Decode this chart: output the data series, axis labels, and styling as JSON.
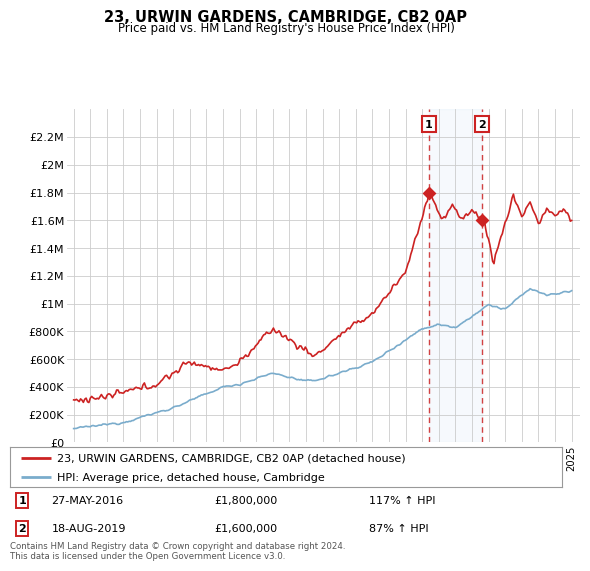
{
  "title": "23, URWIN GARDENS, CAMBRIDGE, CB2 0AP",
  "subtitle": "Price paid vs. HM Land Registry's House Price Index (HPI)",
  "legend_line1": "23, URWIN GARDENS, CAMBRIDGE, CB2 0AP (detached house)",
  "legend_line2": "HPI: Average price, detached house, Cambridge",
  "footer": "Contains HM Land Registry data © Crown copyright and database right 2024.\nThis data is licensed under the Open Government Licence v3.0.",
  "annotation1_label": "1",
  "annotation1_date": "27-MAY-2016",
  "annotation1_price": "£1,800,000",
  "annotation1_hpi": "117% ↑ HPI",
  "annotation2_label": "2",
  "annotation2_date": "18-AUG-2019",
  "annotation2_price": "£1,600,000",
  "annotation2_hpi": "87% ↑ HPI",
  "red_color": "#cc2222",
  "blue_color": "#7aaccc",
  "grid_color": "#cccccc",
  "background_color": "#ffffff",
  "ylim": [
    0,
    2400000
  ],
  "yticks": [
    0,
    200000,
    400000,
    600000,
    800000,
    1000000,
    1200000,
    1400000,
    1600000,
    1800000,
    2000000,
    2200000
  ],
  "ylabels": [
    "£0",
    "£200K",
    "£400K",
    "£600K",
    "£800K",
    "£1M",
    "£1.2M",
    "£1.4M",
    "£1.6M",
    "£1.8M",
    "£2M",
    "£2.2M"
  ],
  "sale1_x": 2016.4,
  "sale1_y": 1800000,
  "sale2_x": 2019.62,
  "sale2_y": 1600000,
  "xlim_min": 1994.6,
  "xlim_max": 2025.5
}
